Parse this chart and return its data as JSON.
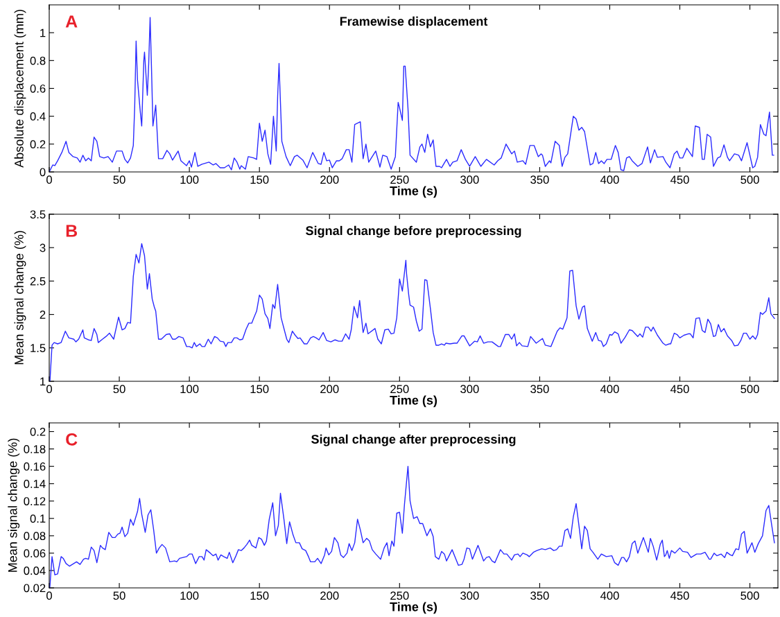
{
  "chart_data": [
    {
      "type": "line",
      "title": "Framewise displacement",
      "xlabel": "Time (s)",
      "ylabel": "Absolute displacement (mm)",
      "annotations": [
        "A"
      ],
      "xlim": [
        0,
        520
      ],
      "xticks": [
        0,
        50,
        100,
        150,
        200,
        250,
        300,
        350,
        400,
        450,
        500
      ],
      "ylim": [
        0,
        1.2
      ],
      "yticks": [
        0,
        0.2,
        0.4,
        0.6,
        0.8,
        1
      ],
      "series": [
        {
          "color": "#2a2aff",
          "x": [
            0,
            2.5,
            4,
            6,
            9,
            12,
            14,
            17,
            20,
            22,
            24,
            26,
            28,
            30,
            32,
            34,
            36,
            39,
            42,
            45,
            48,
            52,
            54,
            56,
            58,
            60,
            61,
            62,
            63,
            65,
            66,
            67.5,
            68,
            70,
            71,
            72,
            73,
            74,
            76,
            78,
            81,
            84,
            86,
            88,
            92,
            94,
            98,
            100,
            101.5,
            104,
            106,
            109,
            114,
            117,
            119,
            122,
            125,
            128,
            130,
            132,
            134,
            136,
            137,
            140,
            142,
            146,
            148,
            150,
            152,
            154,
            156,
            158,
            160,
            162,
            163,
            164,
            166,
            169,
            172,
            175,
            177,
            181,
            184,
            188,
            192,
            194,
            196,
            198,
            200,
            202,
            205,
            207,
            209,
            212,
            214,
            216,
            218,
            222,
            224,
            226,
            228,
            233,
            236,
            238,
            241,
            244,
            247,
            249,
            250,
            252,
            253,
            254,
            256,
            257.5,
            262,
            264.5,
            266,
            268,
            270,
            272,
            274,
            276,
            278.5,
            280,
            283.5,
            286,
            288,
            291,
            294,
            297,
            300,
            304,
            308,
            312,
            317.5,
            320,
            322.5,
            326,
            330,
            332,
            334,
            338,
            340,
            343,
            346,
            349,
            351,
            352,
            354,
            357,
            358,
            361,
            364,
            366,
            368,
            370,
            374,
            376,
            378,
            380,
            382,
            386,
            388,
            390,
            392,
            394,
            396,
            398,
            401,
            404,
            406,
            408,
            410,
            412,
            414,
            416,
            420,
            423,
            427,
            429,
            432,
            434,
            438,
            440,
            443,
            446,
            448,
            450,
            452,
            455,
            459,
            461,
            464,
            466,
            467.5,
            469.5,
            472,
            474,
            477,
            479,
            481.5,
            484,
            485.5,
            489,
            492,
            494,
            498,
            502,
            503.5,
            505.5,
            507.5,
            510,
            511.5,
            514,
            516,
            517
          ],
          "values": [
            0,
            0.05,
            0.045,
            0.08,
            0.14,
            0.22,
            0.14,
            0.11,
            0.1,
            0.07,
            0.12,
            0.08,
            0.1,
            0.08,
            0.25,
            0.22,
            0.11,
            0.1,
            0.11,
            0.07,
            0.15,
            0.15,
            0.09,
            0.065,
            0.1,
            0.19,
            0.47,
            0.94,
            0.66,
            0.43,
            0.33,
            0.8,
            0.86,
            0.55,
            0.78,
            1.11,
            0.74,
            0.33,
            0.48,
            0.095,
            0.095,
            0.155,
            0.13,
            0.085,
            0.15,
            0.08,
            0.045,
            0.08,
            0.035,
            0.14,
            0.04,
            0.055,
            0.07,
            0.05,
            0.06,
            0.03,
            0.03,
            0.05,
            0.015,
            0.1,
            0.07,
            0.02,
            0.045,
            0.02,
            0.11,
            0.1,
            0.09,
            0.35,
            0.22,
            0.3,
            0.13,
            0.055,
            0.4,
            0.15,
            0.54,
            0.78,
            0.22,
            0.11,
            0.045,
            0.11,
            0.12,
            0.085,
            0.03,
            0.14,
            0.06,
            0.055,
            0.14,
            0.08,
            0.085,
            0.03,
            0.08,
            0.08,
            0.095,
            0.16,
            0.16,
            0.07,
            0.34,
            0.36,
            0.095,
            0.2,
            0.07,
            0.15,
            0.035,
            0.12,
            0.11,
            0.02,
            0.11,
            0.5,
            0.46,
            0.37,
            0.76,
            0.76,
            0.46,
            0.12,
            0.07,
            0.18,
            0.2,
            0.14,
            0.27,
            0.18,
            0.23,
            0.04,
            0.04,
            0.03,
            0.09,
            0.04,
            0.07,
            0.08,
            0.16,
            0.09,
            0.04,
            0.11,
            0.04,
            0.09,
            0.05,
            0.08,
            0.1,
            0.2,
            0.13,
            0.15,
            0.07,
            0.08,
            0.055,
            0.19,
            0.19,
            0.11,
            0.13,
            0.12,
            0.04,
            0.08,
            0.065,
            0.22,
            0.19,
            0.04,
            0.105,
            0.13,
            0.4,
            0.38,
            0.3,
            0.32,
            0.29,
            0.05,
            0.06,
            0.14,
            0.06,
            0.08,
            0.06,
            0.09,
            0.09,
            0.19,
            0.14,
            0.015,
            0.01,
            0.1,
            0.11,
            0.08,
            0.04,
            0.06,
            0.18,
            0.065,
            0.16,
            0.105,
            0.11,
            0.07,
            0.03,
            0.13,
            0.15,
            0.1,
            0.1,
            0.17,
            0.11,
            0.33,
            0.32,
            0.09,
            0.09,
            0.27,
            0.25,
            0.04,
            0.1,
            0.11,
            0.195,
            0.105,
            0.08,
            0.13,
            0.12,
            0.08,
            0.21,
            0.03,
            0.04,
            0.105,
            0.34,
            0.27,
            0.26,
            0.43,
            0.12,
            0.12
          ]
        }
      ]
    },
    {
      "type": "line",
      "title": "Signal change before preprocessing",
      "xlabel": "Time (s)",
      "ylabel": "Mean signal change (%)",
      "annotations": [
        "B"
      ],
      "xlim": [
        0,
        520
      ],
      "xticks": [
        0,
        50,
        100,
        150,
        200,
        250,
        300,
        350,
        400,
        450,
        500
      ],
      "ylim": [
        1,
        3.5
      ],
      "yticks": [
        1,
        1.5,
        2,
        2.5,
        3,
        3.5
      ],
      "series": [
        {
          "color": "#2a2aff",
          "x": [
            0.5,
            2,
            3.5,
            6,
            8.5,
            11.5,
            14,
            17.5,
            19,
            21,
            24,
            25,
            28,
            30,
            32,
            34,
            35,
            38,
            40.5,
            43,
            46,
            49.5,
            52,
            54,
            56,
            58,
            60,
            62,
            64,
            66,
            68,
            70,
            71.5,
            73.5,
            75,
            76,
            78,
            80,
            83.5,
            86,
            88,
            90,
            92.5,
            95.5,
            98,
            100,
            102,
            103.5,
            105,
            107.5,
            109,
            111,
            113.5,
            115.5,
            118,
            120,
            122,
            124.5,
            126,
            127.5,
            130,
            132,
            134,
            136,
            138,
            140.5,
            142.5,
            144.5,
            146,
            148,
            150,
            152,
            154,
            156,
            157.5,
            159.5,
            161,
            163,
            165.5,
            168,
            169.5,
            171,
            173.5,
            175.5,
            177.5,
            179,
            182,
            184,
            186.5,
            188.5,
            190.5,
            192.5,
            195.5,
            198,
            201,
            204,
            206.5,
            209,
            211.5,
            214,
            215.5,
            217.5,
            220,
            221.5,
            224,
            226,
            227.5,
            232.5,
            234.5,
            237,
            239.5,
            242,
            244,
            246,
            248,
            250,
            252,
            254.5,
            255,
            256.5,
            257.5,
            260,
            262,
            264,
            266,
            268,
            269.5,
            272,
            274,
            276,
            278,
            280,
            282,
            283,
            286,
            289,
            291,
            294.5,
            296,
            300,
            303.5,
            305.5,
            307.5,
            310,
            313,
            316,
            320.5,
            322,
            325.5,
            328,
            330,
            332,
            333.5,
            335.5,
            337.5,
            341.5,
            343.5,
            347.5,
            352,
            354,
            358,
            362.5,
            364.5,
            366.5,
            369.5,
            371.5,
            373.5,
            376,
            378,
            380.5,
            382,
            384,
            387.5,
            390,
            392,
            394,
            395.5,
            397.5,
            400,
            401.5,
            403.5,
            406,
            408,
            411,
            414,
            416,
            420,
            421.5,
            423.5,
            425.5,
            427.5,
            429.5,
            431,
            434,
            438,
            440,
            442.5,
            443.5,
            446,
            448,
            450,
            453,
            456,
            457.5,
            459.5,
            461.5,
            464,
            466,
            468,
            470,
            472,
            474,
            475.5,
            477.5,
            479.5,
            481.5,
            484,
            487,
            489,
            491.5,
            493.5,
            495.5,
            497.5,
            500,
            502,
            504,
            505.5,
            507.5,
            509,
            511.5,
            513.5,
            515,
            517.5
          ],
          "values": [
            1.0,
            1.54,
            1.58,
            1.56,
            1.58,
            1.75,
            1.65,
            1.63,
            1.59,
            1.63,
            1.77,
            1.65,
            1.62,
            1.61,
            1.79,
            1.7,
            1.58,
            1.63,
            1.67,
            1.72,
            1.63,
            1.96,
            1.77,
            1.79,
            1.88,
            1.87,
            2.57,
            2.9,
            2.77,
            3.06,
            2.88,
            2.38,
            2.61,
            2.23,
            2.11,
            2.05,
            1.63,
            1.63,
            1.7,
            1.71,
            1.63,
            1.63,
            1.67,
            1.65,
            1.52,
            1.52,
            1.5,
            1.58,
            1.52,
            1.56,
            1.52,
            1.52,
            1.63,
            1.56,
            1.67,
            1.65,
            1.6,
            1.59,
            1.52,
            1.58,
            1.58,
            1.65,
            1.65,
            1.62,
            1.63,
            1.78,
            1.87,
            1.87,
            1.95,
            2.05,
            2.29,
            2.23,
            2.01,
            1.94,
            1.79,
            2.15,
            2.09,
            2.45,
            1.95,
            1.75,
            1.63,
            1.58,
            1.75,
            1.69,
            1.64,
            1.65,
            1.56,
            1.56,
            1.65,
            1.67,
            1.65,
            1.62,
            1.73,
            1.61,
            1.59,
            1.62,
            1.6,
            1.6,
            1.71,
            1.63,
            1.77,
            2.12,
            1.95,
            2.21,
            1.73,
            1.87,
            1.71,
            1.79,
            1.63,
            1.56,
            1.77,
            1.78,
            1.71,
            1.72,
            1.95,
            2.53,
            2.35,
            2.81,
            2.61,
            2.3,
            2.14,
            2.11,
            1.9,
            1.75,
            1.78,
            2.52,
            2.51,
            2.09,
            1.73,
            1.54,
            1.54,
            1.56,
            1.54,
            1.57,
            1.56,
            1.57,
            1.57,
            1.68,
            1.68,
            1.53,
            1.6,
            1.59,
            1.68,
            1.57,
            1.59,
            1.59,
            1.52,
            1.52,
            1.7,
            1.7,
            1.63,
            1.71,
            1.53,
            1.58,
            1.53,
            1.52,
            1.67,
            1.57,
            1.64,
            1.54,
            1.52,
            1.75,
            1.8,
            1.78,
            1.95,
            2.65,
            2.66,
            2.13,
            1.93,
            2.11,
            2.13,
            1.79,
            1.6,
            1.73,
            1.61,
            1.6,
            1.52,
            1.56,
            1.7,
            1.69,
            1.74,
            1.71,
            1.57,
            1.66,
            1.77,
            1.76,
            1.67,
            1.71,
            1.66,
            1.81,
            1.81,
            1.75,
            1.81,
            1.69,
            1.57,
            1.54,
            1.56,
            1.56,
            1.72,
            1.7,
            1.65,
            1.69,
            1.71,
            1.71,
            1.65,
            1.94,
            1.95,
            1.76,
            1.73,
            1.93,
            1.86,
            1.67,
            1.68,
            1.85,
            1.74,
            1.79,
            1.68,
            1.61,
            1.53,
            1.54,
            1.61,
            1.72,
            1.72,
            1.63,
            1.68,
            1.63,
            1.7,
            2.03,
            2.0,
            2.05,
            2.25,
            2.01,
            1.94
          ]
        }
      ]
    },
    {
      "type": "line",
      "title": "Signal change after preprocessing",
      "xlabel": "Time (s)",
      "ylabel": "Mean signal change (%)",
      "annotations": [
        "C"
      ],
      "xlim": [
        0,
        520
      ],
      "xticks": [
        0,
        50,
        100,
        150,
        200,
        250,
        300,
        350,
        400,
        450,
        500
      ],
      "ylim": [
        0.02,
        0.21
      ],
      "yticks": [
        0.02,
        0.04,
        0.06,
        0.08,
        0.1,
        0.12,
        0.14,
        0.16,
        0.18,
        0.2
      ],
      "series": [
        {
          "color": "#2a2aff",
          "x": [
            0.4,
            2,
            4,
            6,
            8.5,
            10,
            12,
            14.5,
            17.5,
            19.5,
            22,
            24.5,
            26,
            28,
            30,
            32,
            34,
            36.5,
            38,
            40,
            42.5,
            45,
            47,
            49,
            50.5,
            52,
            54,
            56,
            58,
            60,
            63,
            64.5,
            66,
            68.5,
            70.5,
            72.5,
            74.5,
            76.5,
            78.5,
            80.5,
            83,
            86,
            89.5,
            91,
            93,
            95.5,
            98,
            100,
            102,
            104.5,
            107,
            109,
            110.5,
            112,
            115,
            117,
            119,
            120.5,
            122.5,
            124.5,
            127,
            128.5,
            131,
            133,
            135,
            137,
            139,
            141,
            143,
            144.5,
            147.5,
            149.5,
            151.5,
            153.5,
            155,
            157,
            159.5,
            161.5,
            163.5,
            165,
            167.5,
            169.5,
            171.5,
            174,
            176,
            178.5,
            180.5,
            183,
            185,
            186.5,
            189.5,
            191.5,
            194,
            196.5,
            197.5,
            199.5,
            201.5,
            203.5,
            206,
            208,
            210,
            212.5,
            214,
            216,
            218,
            220,
            222,
            224,
            226.5,
            228.5,
            230.5,
            233,
            236.5,
            239,
            241,
            242.5,
            244.5,
            246,
            248,
            250,
            252,
            253.5,
            256,
            257.5,
            260,
            262.5,
            264.5,
            266.5,
            269.5,
            272,
            274,
            275.5,
            278,
            280,
            282,
            283.5,
            287.5,
            290,
            292,
            294.5,
            296,
            298,
            300,
            302,
            306,
            310,
            312,
            314,
            316,
            318,
            322,
            324.5,
            326.5,
            330,
            332,
            334.5,
            336,
            338,
            341,
            342.5,
            345.5,
            348,
            351.5,
            354,
            357.5,
            360,
            362,
            364,
            366,
            368,
            370,
            372,
            374,
            376,
            378,
            380,
            382,
            384,
            386,
            388,
            391.5,
            394,
            397.5,
            401.5,
            403.5,
            406,
            408.5,
            410,
            412,
            414,
            416,
            418,
            420,
            424,
            427.5,
            429,
            431,
            433.5,
            436,
            437.5,
            439,
            440,
            441,
            442.5,
            444,
            446.5,
            450,
            452,
            455.5,
            458,
            462,
            465,
            468,
            471,
            472,
            474.5,
            476.5,
            479.5,
            482,
            483.5,
            486,
            487.5,
            490,
            492,
            494,
            496,
            498,
            501.5,
            503.5,
            506,
            509,
            511.5,
            513.5,
            515.5,
            517.5
          ],
          "values": [
            0.02,
            0.056,
            0.035,
            0.036,
            0.056,
            0.054,
            0.048,
            0.045,
            0.048,
            0.05,
            0.047,
            0.053,
            0.054,
            0.053,
            0.067,
            0.063,
            0.049,
            0.069,
            0.066,
            0.064,
            0.084,
            0.078,
            0.078,
            0.082,
            0.083,
            0.09,
            0.079,
            0.083,
            0.099,
            0.092,
            0.108,
            0.123,
            0.105,
            0.084,
            0.104,
            0.11,
            0.087,
            0.06,
            0.066,
            0.07,
            0.066,
            0.05,
            0.051,
            0.05,
            0.054,
            0.055,
            0.056,
            0.059,
            0.059,
            0.048,
            0.056,
            0.056,
            0.052,
            0.064,
            0.06,
            0.057,
            0.059,
            0.052,
            0.058,
            0.056,
            0.054,
            0.061,
            0.049,
            0.056,
            0.064,
            0.063,
            0.066,
            0.07,
            0.075,
            0.069,
            0.066,
            0.078,
            0.076,
            0.069,
            0.074,
            0.099,
            0.118,
            0.08,
            0.092,
            0.129,
            0.099,
            0.071,
            0.096,
            0.081,
            0.072,
            0.072,
            0.065,
            0.063,
            0.056,
            0.05,
            0.05,
            0.054,
            0.048,
            0.058,
            0.066,
            0.058,
            0.062,
            0.078,
            0.072,
            0.058,
            0.055,
            0.06,
            0.071,
            0.063,
            0.072,
            0.099,
            0.087,
            0.072,
            0.077,
            0.074,
            0.064,
            0.059,
            0.053,
            0.066,
            0.072,
            0.057,
            0.074,
            0.068,
            0.106,
            0.107,
            0.083,
            0.116,
            0.16,
            0.12,
            0.1,
            0.102,
            0.094,
            0.094,
            0.08,
            0.088,
            0.079,
            0.056,
            0.053,
            0.062,
            0.059,
            0.051,
            0.064,
            0.054,
            0.046,
            0.047,
            0.053,
            0.066,
            0.065,
            0.053,
            0.069,
            0.051,
            0.055,
            0.056,
            0.051,
            0.049,
            0.064,
            0.059,
            0.059,
            0.052,
            0.058,
            0.059,
            0.056,
            0.06,
            0.058,
            0.056,
            0.061,
            0.063,
            0.065,
            0.064,
            0.066,
            0.063,
            0.064,
            0.068,
            0.068,
            0.086,
            0.088,
            0.077,
            0.102,
            0.117,
            0.092,
            0.065,
            0.091,
            0.086,
            0.065,
            0.061,
            0.053,
            0.059,
            0.056,
            0.057,
            0.049,
            0.046,
            0.055,
            0.055,
            0.05,
            0.056,
            0.071,
            0.074,
            0.06,
            0.078,
            0.061,
            0.077,
            0.068,
            0.052,
            0.07,
            0.075,
            0.056,
            0.058,
            0.063,
            0.054,
            0.063,
            0.06,
            0.066,
            0.062,
            0.061,
            0.055,
            0.059,
            0.059,
            0.061,
            0.053,
            0.053,
            0.06,
            0.057,
            0.059,
            0.055,
            0.061,
            0.058,
            0.057,
            0.065,
            0.064,
            0.082,
            0.085,
            0.06,
            0.072,
            0.061,
            0.071,
            0.08,
            0.109,
            0.115,
            0.093,
            0.072
          ]
        }
      ]
    }
  ]
}
